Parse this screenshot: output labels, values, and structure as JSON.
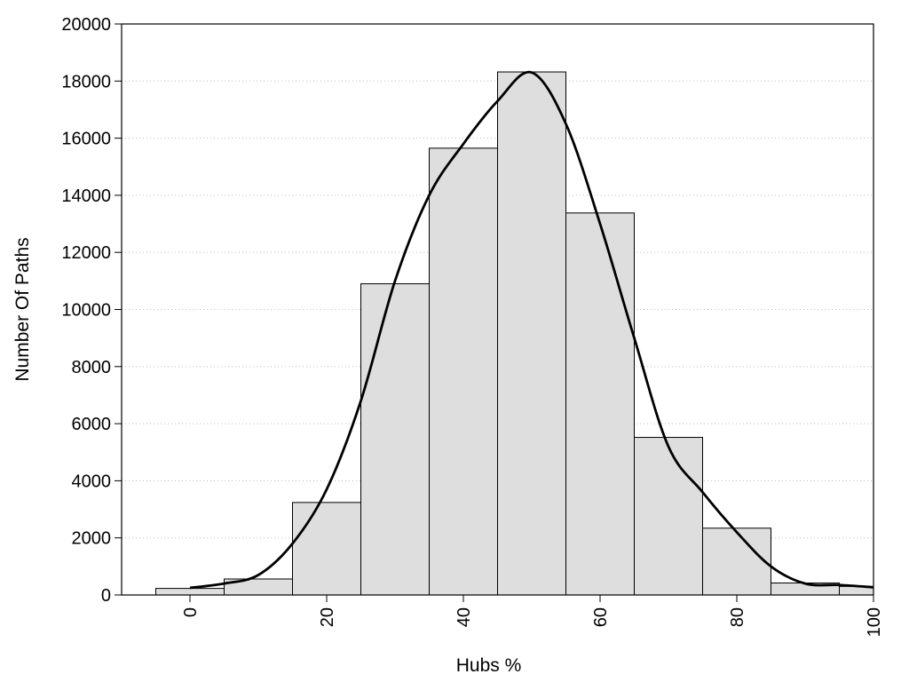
{
  "chart_data": {
    "type": "bar",
    "title": "",
    "xlabel": "Hubs %",
    "ylabel": "Number Of Paths",
    "xlim": [
      -10,
      100
    ],
    "ylim": [
      0,
      20000
    ],
    "grid": "horizontal dotted",
    "bin_width": 10,
    "x_ticks": [
      0,
      20,
      40,
      60,
      80,
      100
    ],
    "y_ticks": [
      0,
      2000,
      4000,
      6000,
      8000,
      10000,
      12000,
      14000,
      16000,
      18000,
      20000
    ],
    "bins": [
      {
        "center": 0,
        "value": 230
      },
      {
        "center": 10,
        "value": 560
      },
      {
        "center": 20,
        "value": 3240
      },
      {
        "center": 30,
        "value": 10900
      },
      {
        "center": 40,
        "value": 15650
      },
      {
        "center": 50,
        "value": 18320
      },
      {
        "center": 60,
        "value": 13380
      },
      {
        "center": 70,
        "value": 5520
      },
      {
        "center": 80,
        "value": 2340
      },
      {
        "center": 90,
        "value": 420
      },
      {
        "center": 100,
        "value": 300
      }
    ],
    "curve": {
      "name": "",
      "x": [
        0,
        5,
        10,
        15,
        20,
        25,
        30,
        35,
        40,
        45,
        50,
        55,
        60,
        65,
        70,
        75,
        80,
        85,
        90,
        95,
        100
      ],
      "y": [
        250,
        400,
        700,
        1800,
        3700,
        6800,
        11000,
        14000,
        15800,
        17300,
        18300,
        16500,
        13000,
        9000,
        5200,
        3600,
        2200,
        1000,
        400,
        350,
        270
      ]
    }
  }
}
